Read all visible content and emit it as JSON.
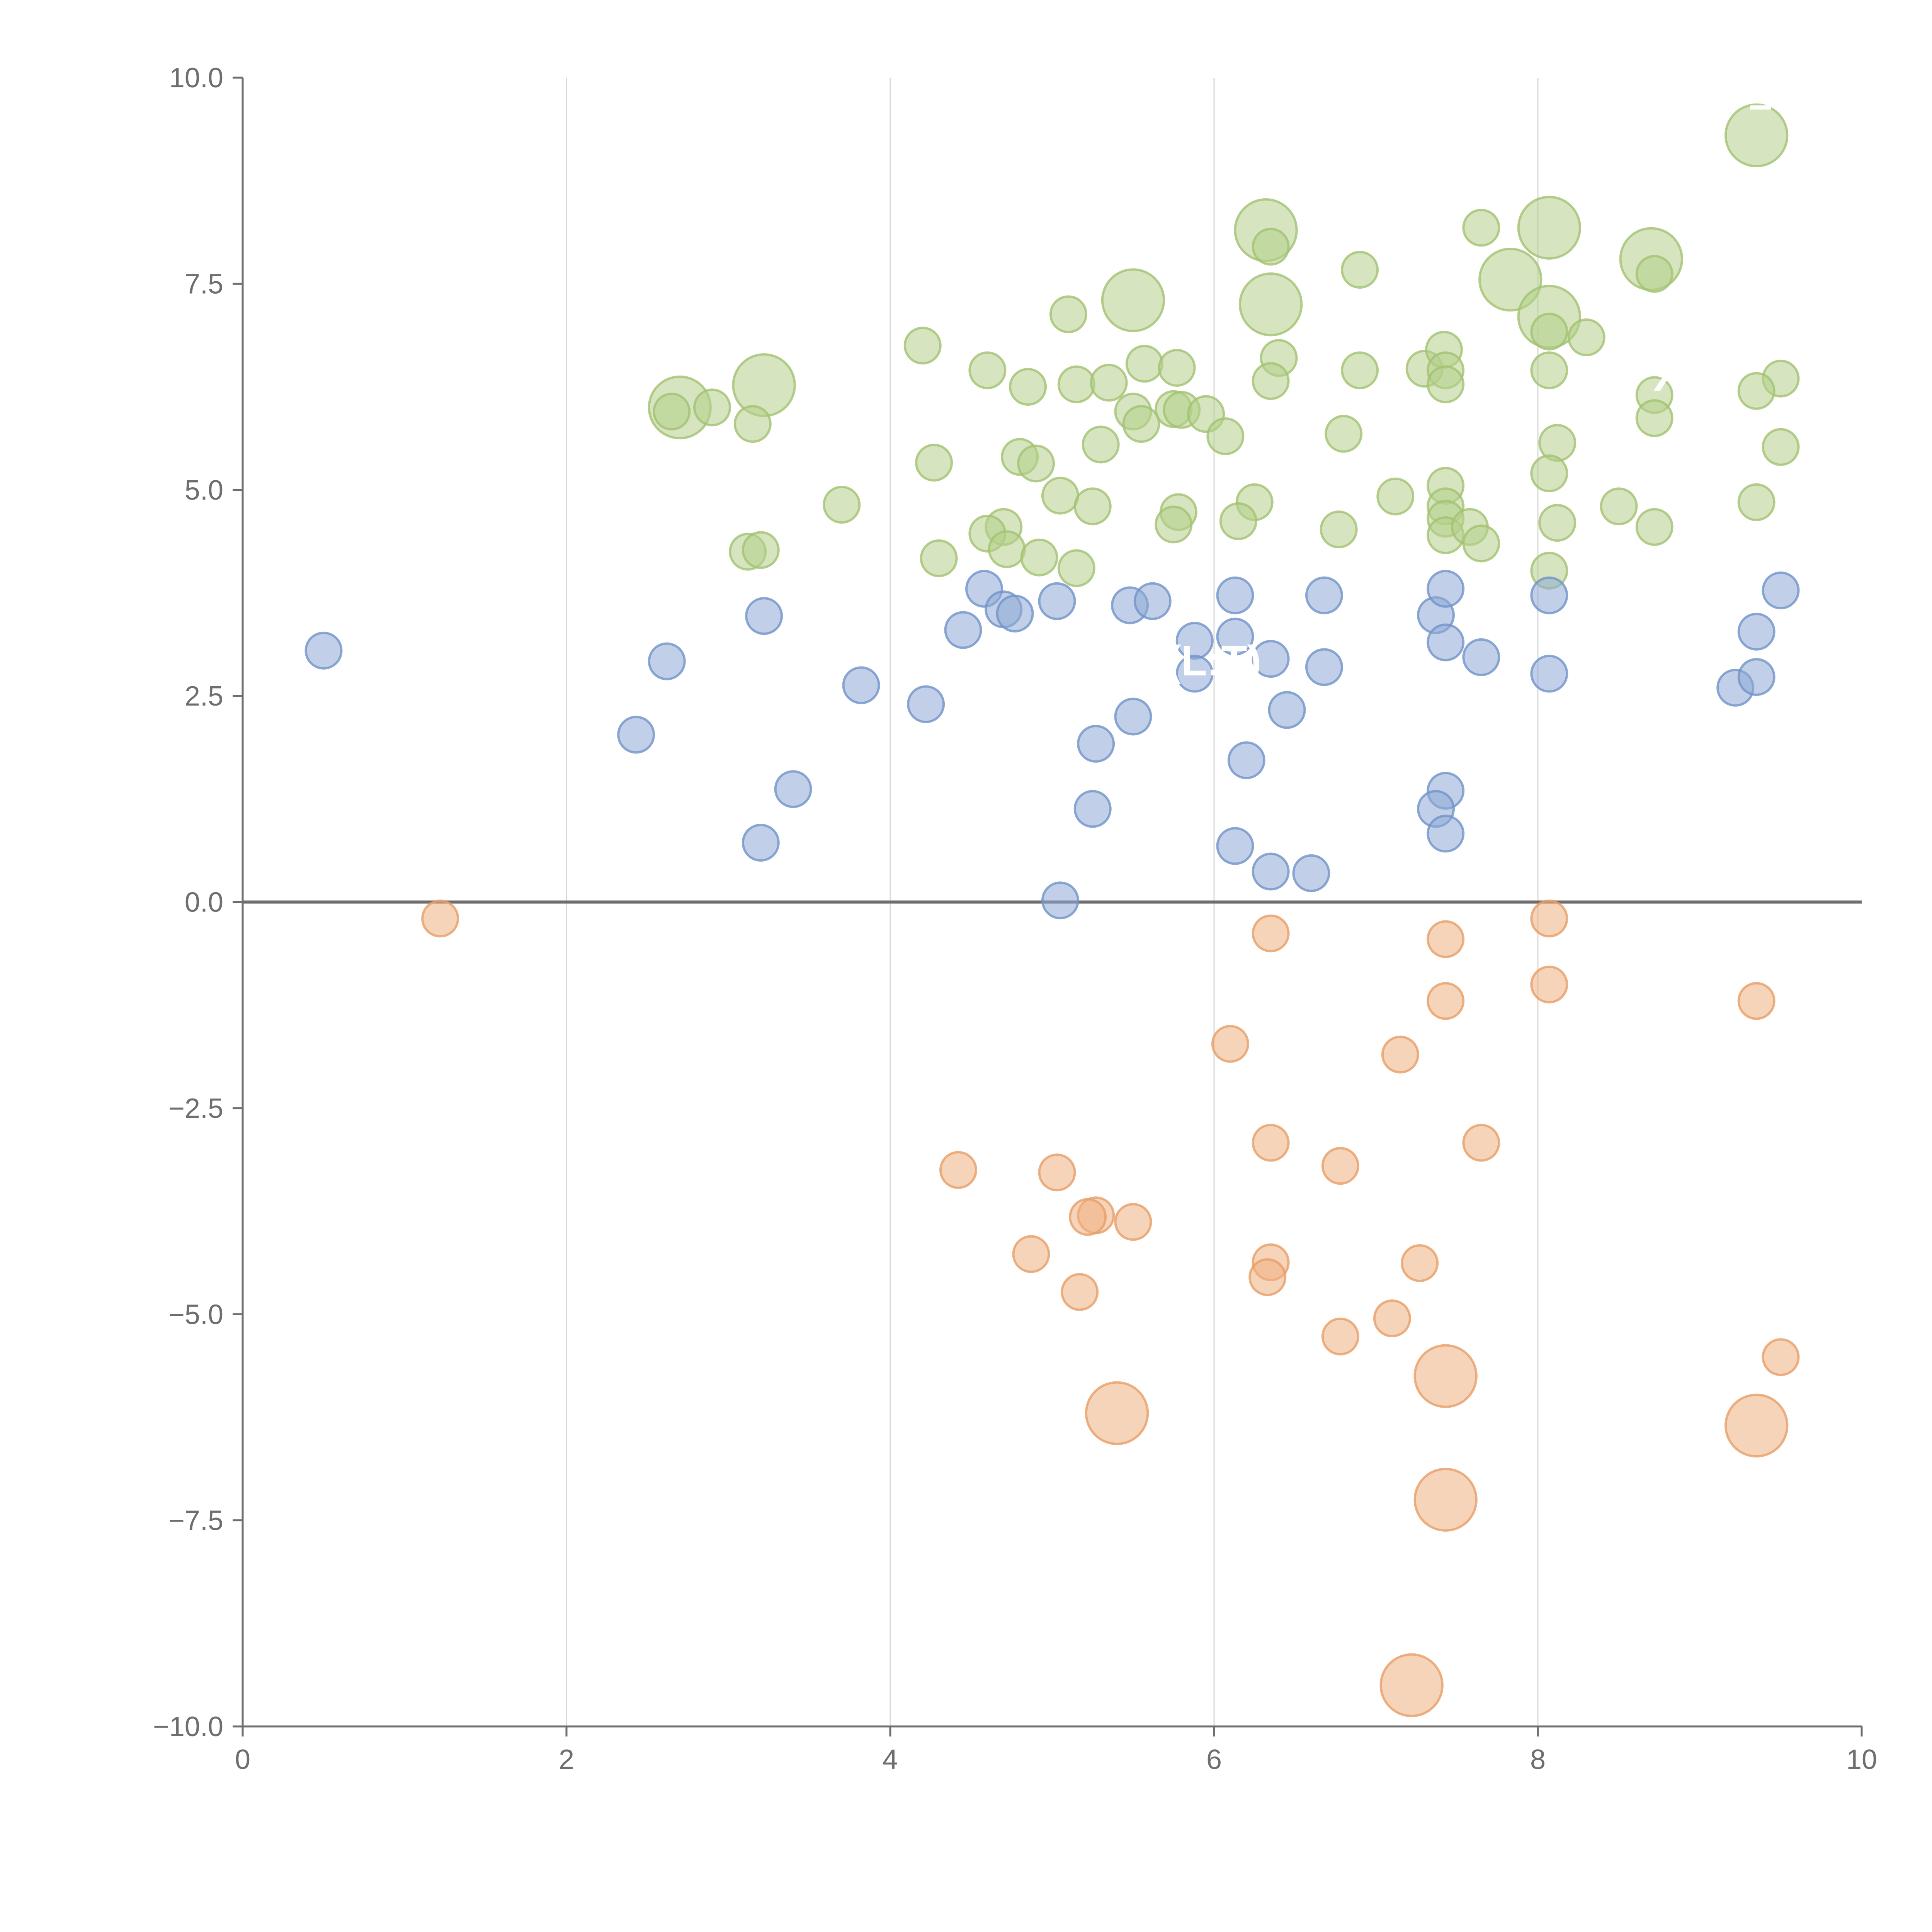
{
  "chart_data": {
    "type": "scatter",
    "title": "",
    "xlabel": "",
    "ylabel": "",
    "xlim": [
      0,
      10
    ],
    "ylim": [
      -10,
      10
    ],
    "x_ticks": [
      0,
      2,
      4,
      6,
      8,
      10
    ],
    "x_tick_labels": [
      "0",
      "2",
      "4",
      "6",
      "8",
      "10"
    ],
    "y_ticks": [
      -10,
      -7.5,
      -5,
      -2.5,
      0,
      2.5,
      5,
      7.5,
      10
    ],
    "y_tick_labels": [
      "−10.0",
      "−7.5",
      "−5.0",
      "−2.5",
      "0.0",
      "2.5",
      "5.0",
      "7.5",
      "10.0"
    ],
    "grid": {
      "vertical": true,
      "horizontal": false
    },
    "zero_line": true,
    "colors": {
      "green": "#b5cf8a",
      "blue": "#8eaad6",
      "orange": "#eeb081",
      "green_stroke": "#a3c272",
      "blue_stroke": "#7094c8",
      "orange_stroke": "#e79d66",
      "axis": "#6e6e6e",
      "grid": "#d8d8d8"
    },
    "annotations": [
      {
        "text": "– X",
        "x": 9.5,
        "y": 9.5
      },
      {
        "text": "X",
        "x": 8.8,
        "y": 6.2
      },
      {
        "text": "(L:T)",
        "x": 6.0,
        "y": 2.75
      }
    ],
    "series": [
      {
        "name": "green",
        "points": [
          [
            9.35,
            9.3,
            3
          ],
          [
            6.32,
            8.15,
            3
          ],
          [
            8.07,
            8.18,
            3
          ],
          [
            7.83,
            7.55,
            3
          ],
          [
            8.7,
            7.8,
            3
          ],
          [
            5.5,
            7.3,
            3
          ],
          [
            6.35,
            7.25,
            3
          ],
          [
            8.07,
            7.1,
            3
          ],
          [
            2.7,
            6.0,
            3
          ],
          [
            3.22,
            6.27,
            3
          ],
          [
            6.35,
            7.95,
            1
          ],
          [
            7.65,
            8.18,
            1
          ],
          [
            6.9,
            7.67,
            1
          ],
          [
            8.72,
            7.62,
            1
          ],
          [
            5.1,
            7.13,
            1
          ],
          [
            4.2,
            6.75,
            1
          ],
          [
            4.6,
            6.45,
            1
          ],
          [
            4.85,
            6.25,
            1
          ],
          [
            5.15,
            6.28,
            1
          ],
          [
            5.35,
            6.3,
            1
          ],
          [
            5.57,
            6.53,
            1
          ],
          [
            5.77,
            6.48,
            1
          ],
          [
            6.4,
            6.6,
            1
          ],
          [
            6.35,
            6.32,
            1
          ],
          [
            6.9,
            6.45,
            1
          ],
          [
            7.3,
            6.47,
            1
          ],
          [
            7.42,
            6.7,
            1
          ],
          [
            7.43,
            6.45,
            1
          ],
          [
            7.43,
            6.28,
            1
          ],
          [
            8.07,
            6.45,
            1
          ],
          [
            8.07,
            6.92,
            1
          ],
          [
            8.3,
            6.85,
            1
          ],
          [
            9.5,
            6.35,
            1
          ],
          [
            9.35,
            6.2,
            1
          ],
          [
            8.72,
            6.15,
            1
          ],
          [
            8.72,
            5.87,
            1
          ],
          [
            2.65,
            5.95,
            1
          ],
          [
            2.9,
            6.0,
            1
          ],
          [
            3.15,
            5.8,
            1
          ],
          [
            5.5,
            5.95,
            1
          ],
          [
            5.55,
            5.8,
            1
          ],
          [
            5.75,
            5.98,
            1
          ],
          [
            5.8,
            5.97,
            1
          ],
          [
            5.95,
            5.92,
            1
          ],
          [
            6.07,
            5.65,
            1
          ],
          [
            6.8,
            5.68,
            1
          ],
          [
            5.3,
            5.55,
            1
          ],
          [
            4.27,
            5.33,
            1
          ],
          [
            4.8,
            5.4,
            1
          ],
          [
            4.9,
            5.32,
            1
          ],
          [
            8.12,
            5.57,
            1
          ],
          [
            9.5,
            5.52,
            1
          ],
          [
            8.07,
            5.2,
            1
          ],
          [
            7.43,
            5.05,
            1
          ],
          [
            7.43,
            4.8,
            1
          ],
          [
            7.43,
            4.65,
            1
          ],
          [
            7.12,
            4.92,
            1
          ],
          [
            5.05,
            4.93,
            1
          ],
          [
            5.25,
            4.8,
            1
          ],
          [
            6.25,
            4.85,
            1
          ],
          [
            6.15,
            4.62,
            1
          ],
          [
            5.78,
            4.73,
            1
          ],
          [
            5.75,
            4.58,
            1
          ],
          [
            3.7,
            4.82,
            1
          ],
          [
            4.7,
            4.55,
            1
          ],
          [
            4.6,
            4.47,
            1
          ],
          [
            4.72,
            4.28,
            1
          ],
          [
            4.92,
            4.18,
            1
          ],
          [
            4.3,
            4.17,
            1
          ],
          [
            5.15,
            4.05,
            1
          ],
          [
            3.12,
            4.25,
            1
          ],
          [
            3.2,
            4.27,
            1
          ],
          [
            6.77,
            4.52,
            1
          ],
          [
            7.43,
            4.45,
            1
          ],
          [
            7.58,
            4.55,
            1
          ],
          [
            7.65,
            4.35,
            1
          ],
          [
            8.5,
            4.8,
            1
          ],
          [
            8.12,
            4.6,
            1
          ],
          [
            8.07,
            4.02,
            1
          ],
          [
            8.72,
            4.55,
            1
          ],
          [
            9.35,
            4.85,
            1
          ]
        ]
      },
      {
        "name": "blue",
        "points": [
          [
            0.5,
            3.05,
            1
          ],
          [
            2.62,
            2.92,
            1
          ],
          [
            2.43,
            2.03,
            1
          ],
          [
            3.22,
            3.47,
            1
          ],
          [
            3.4,
            1.37,
            1
          ],
          [
            3.2,
            0.72,
            1
          ],
          [
            3.82,
            2.63,
            1
          ],
          [
            4.22,
            2.4,
            1
          ],
          [
            4.45,
            3.3,
            1
          ],
          [
            4.58,
            3.8,
            1
          ],
          [
            4.7,
            3.55,
            1
          ],
          [
            4.77,
            3.5,
            1
          ],
          [
            5.03,
            3.65,
            1
          ],
          [
            5.27,
            1.92,
            1
          ],
          [
            5.25,
            1.13,
            1
          ],
          [
            5.48,
            3.6,
            1
          ],
          [
            5.5,
            2.25,
            1
          ],
          [
            5.62,
            3.65,
            1
          ],
          [
            5.88,
            3.17,
            1
          ],
          [
            5.88,
            2.77,
            1
          ],
          [
            6.13,
            3.72,
            1
          ],
          [
            6.13,
            3.22,
            1
          ],
          [
            6.2,
            1.72,
            1
          ],
          [
            6.13,
            0.68,
            1
          ],
          [
            6.35,
            2.95,
            1
          ],
          [
            6.35,
            0.37,
            1
          ],
          [
            6.45,
            2.33,
            1
          ],
          [
            6.6,
            0.35,
            1
          ],
          [
            6.68,
            3.72,
            1
          ],
          [
            6.68,
            2.85,
            1
          ],
          [
            5.05,
            0.02,
            1
          ],
          [
            7.37,
            3.48,
            1
          ],
          [
            7.43,
            3.8,
            1
          ],
          [
            7.43,
            3.15,
            1
          ],
          [
            7.65,
            2.97,
            1
          ],
          [
            7.43,
            1.35,
            1
          ],
          [
            7.37,
            1.13,
            1
          ],
          [
            7.43,
            0.83,
            1
          ],
          [
            8.07,
            3.72,
            1
          ],
          [
            8.07,
            2.77,
            1
          ],
          [
            9.22,
            2.6,
            1
          ],
          [
            9.35,
            3.28,
            1
          ],
          [
            9.35,
            2.73,
            1
          ],
          [
            9.5,
            3.78,
            1
          ]
        ]
      },
      {
        "name": "orange",
        "points": [
          [
            1.22,
            -0.2,
            1
          ],
          [
            6.35,
            -0.38,
            1
          ],
          [
            7.43,
            -0.45,
            1
          ],
          [
            8.07,
            -0.2,
            1
          ],
          [
            7.43,
            -1.2,
            1
          ],
          [
            8.07,
            -1.0,
            1
          ],
          [
            9.35,
            -1.2,
            1
          ],
          [
            6.1,
            -1.72,
            1
          ],
          [
            7.15,
            -1.85,
            1
          ],
          [
            6.35,
            -2.92,
            1
          ],
          [
            6.78,
            -3.2,
            1
          ],
          [
            7.65,
            -2.92,
            1
          ],
          [
            4.42,
            -3.25,
            1
          ],
          [
            5.03,
            -3.28,
            1
          ],
          [
            5.27,
            -3.8,
            1
          ],
          [
            5.22,
            -3.82,
            1
          ],
          [
            5.5,
            -3.88,
            1
          ],
          [
            4.87,
            -4.27,
            1
          ],
          [
            5.17,
            -4.73,
            1
          ],
          [
            6.35,
            -4.37,
            1
          ],
          [
            6.33,
            -4.55,
            1
          ],
          [
            7.27,
            -4.38,
            1
          ],
          [
            7.1,
            -5.05,
            1
          ],
          [
            6.78,
            -5.27,
            1
          ],
          [
            9.5,
            -5.52,
            1
          ],
          [
            7.43,
            -5.75,
            3
          ],
          [
            5.4,
            -6.2,
            3
          ],
          [
            9.35,
            -6.35,
            3
          ],
          [
            7.43,
            -7.25,
            3
          ],
          [
            7.22,
            -9.5,
            3
          ]
        ]
      }
    ]
  }
}
